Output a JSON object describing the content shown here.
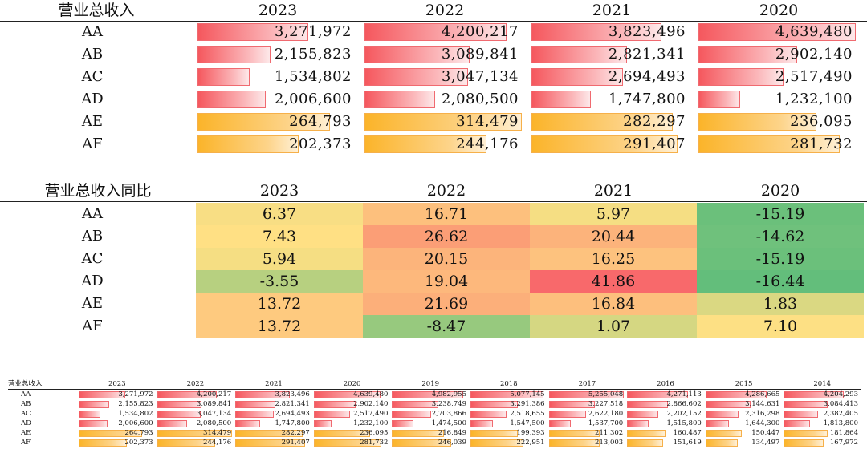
{
  "chart_data": [
    {
      "type": "table",
      "title": "营业总收入",
      "columns": [
        "2023",
        "2022",
        "2021",
        "2020"
      ],
      "rows": [
        {
          "label": "AA",
          "values": [
            "3,271,972",
            "4,200,217",
            "3,823,496",
            "4,639,480"
          ],
          "bar_group": "red"
        },
        {
          "label": "AB",
          "values": [
            "2,155,823",
            "3,089,841",
            "2,821,341",
            "2,902,140"
          ],
          "bar_group": "red"
        },
        {
          "label": "AC",
          "values": [
            "1,534,802",
            "3,047,134",
            "2,694,493",
            "2,517,490"
          ],
          "bar_group": "red"
        },
        {
          "label": "AD",
          "values": [
            "2,006,600",
            "2,080,500",
            "1,747,800",
            "1,232,100"
          ],
          "bar_group": "red"
        },
        {
          "label": "AE",
          "values": [
            "264,793",
            "314,479",
            "282,297",
            "236,095"
          ],
          "bar_group": "orange"
        },
        {
          "label": "AF",
          "values": [
            "202,373",
            "244,176",
            "291,407",
            "281,732"
          ],
          "bar_group": "orange"
        }
      ]
    },
    {
      "type": "heatmap",
      "title": "营业总收入同比",
      "columns": [
        "2023",
        "2022",
        "2021",
        "2020"
      ],
      "rows": [
        {
          "label": "AA",
          "values": [
            "6.37",
            "16.71",
            "5.97",
            "-15.19"
          ]
        },
        {
          "label": "AB",
          "values": [
            "7.43",
            "26.62",
            "20.44",
            "-14.62"
          ]
        },
        {
          "label": "AC",
          "values": [
            "5.94",
            "20.15",
            "16.25",
            "-15.19"
          ]
        },
        {
          "label": "AD",
          "values": [
            "-3.55",
            "19.04",
            "41.86",
            "-16.44"
          ]
        },
        {
          "label": "AE",
          "values": [
            "13.72",
            "21.69",
            "16.84",
            "1.83"
          ]
        },
        {
          "label": "AF",
          "values": [
            "13.72",
            "-8.47",
            "1.07",
            "7.10"
          ]
        }
      ]
    },
    {
      "type": "table",
      "title": "营业总收入",
      "columns": [
        "2023",
        "2022",
        "2021",
        "2020",
        "2019",
        "2018",
        "2017",
        "2016",
        "2015",
        "2014"
      ],
      "rows": [
        {
          "label": "AA",
          "values": [
            "3,271,972",
            "4,200,217",
            "3,823,496",
            "4,639,480",
            "4,982,955",
            "5,077,145",
            "5,255,048",
            "4,271,113",
            "4,286,665",
            "4,204,293"
          ],
          "bar_group": "red"
        },
        {
          "label": "AB",
          "values": [
            "2,155,823",
            "3,089,841",
            "2,821,341",
            "2,902,140",
            "3,238,749",
            "3,291,386",
            "3,227,518",
            "2,866,602",
            "3,144,631",
            "3,084,413"
          ],
          "bar_group": "red"
        },
        {
          "label": "AC",
          "values": [
            "1,534,802",
            "3,047,134",
            "2,694,493",
            "2,517,490",
            "2,703,866",
            "2,518,655",
            "2,622,180",
            "2,202,152",
            "2,316,298",
            "2,382,405"
          ],
          "bar_group": "red"
        },
        {
          "label": "AD",
          "values": [
            "2,006,600",
            "2,080,500",
            "1,747,800",
            "1,232,100",
            "1,474,500",
            "1,547,500",
            "1,537,700",
            "1,515,800",
            "1,644,300",
            "1,813,800"
          ],
          "bar_group": "red"
        },
        {
          "label": "AE",
          "values": [
            "264,793",
            "314,479",
            "282,297",
            "236,095",
            "216,849",
            "199,393",
            "211,302",
            "160,487",
            "150,447",
            "181,864"
          ],
          "bar_group": "orange"
        },
        {
          "label": "AF",
          "values": [
            "202,373",
            "244,176",
            "291,407",
            "281,732",
            "246,039",
            "222,951",
            "213,003",
            "151,619",
            "134,497",
            "167,972"
          ],
          "bar_group": "orange"
        }
      ]
    }
  ],
  "colors": {
    "red_bar": "#f5585e",
    "orange_bar": "#fbb42a",
    "heat_green": "#63be7b",
    "heat_yellow": "#ffe084",
    "heat_red": "#f8696b"
  }
}
